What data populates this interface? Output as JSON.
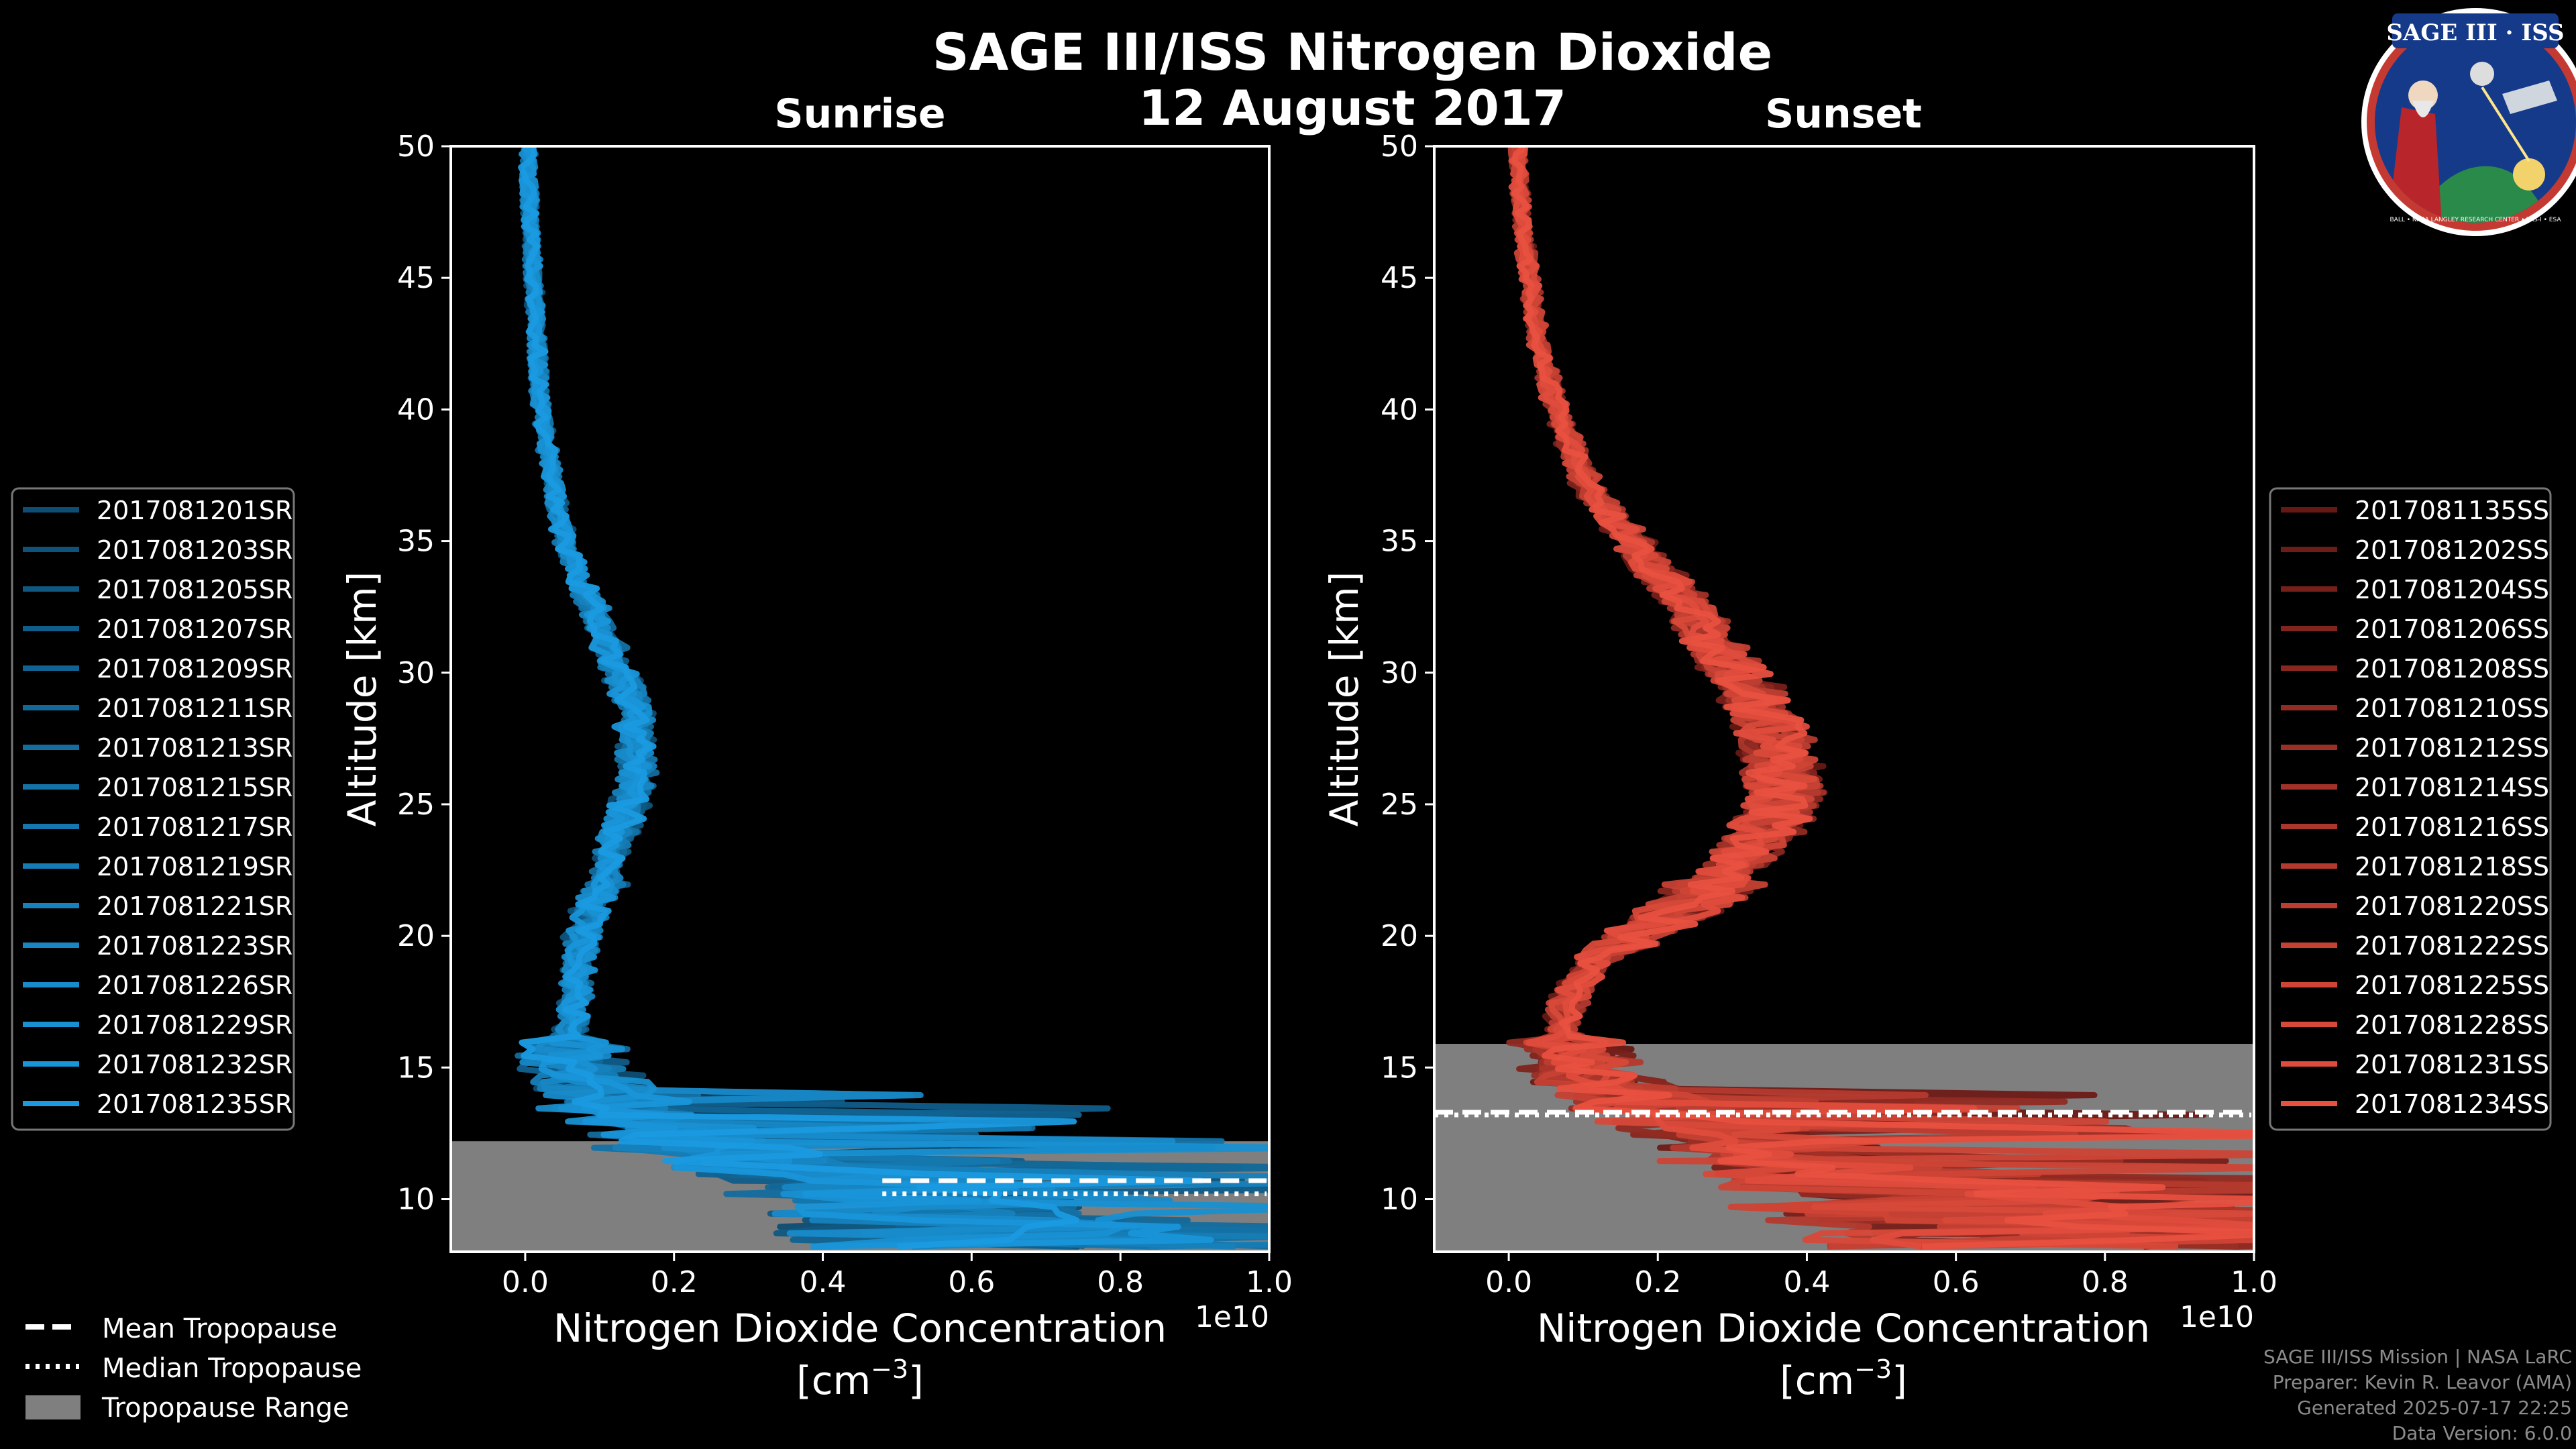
{
  "header": {
    "title": "SAGE III/ISS Nitrogen Dioxide",
    "date": "12 August 2017"
  },
  "logo": {
    "name": "SAGE III · ISS",
    "ring_text": "BALL • NASA LANGLEY RESEARCH CENTER • TAS-I • ESA"
  },
  "legend_common": {
    "items": [
      "Mean Tropopause",
      "Median Tropopause",
      "Tropopause Range"
    ]
  },
  "footer": {
    "line1": "SAGE III/ISS Mission | NASA LaRC",
    "line2": "Preparer: Kevin R. Leavor (AMA)",
    "line3": "Generated 2025-07-17 22:25",
    "line4": "Data Version: 6.0.0"
  },
  "colors": {
    "background": "#000000",
    "sunrise": "#1a9ae0",
    "sunset": "#e8503f",
    "tropopause_range": "#7f7f7f"
  },
  "chart_data": [
    {
      "type": "line",
      "title": "Sunrise",
      "xlabel": "Nitrogen Dioxide Concentration",
      "xlabel_units": "[cm$^{-3}$]",
      "ylabel": "Altitude [km]",
      "x_scale_label": "1e10",
      "xlim": [
        -0.1,
        1.0
      ],
      "ylim": [
        8,
        50
      ],
      "xticks": [
        "0.0",
        "0.2",
        "0.4",
        "0.6",
        "0.8",
        "1.0"
      ],
      "yticks": [
        "10",
        "15",
        "20",
        "25",
        "30",
        "35",
        "40",
        "45",
        "50"
      ],
      "legend_position": "left",
      "tropopause": {
        "mean": 10.7,
        "median": 10.2,
        "range": [
          8.0,
          12.2
        ]
      },
      "altitudes": [
        8.5,
        9.5,
        10.5,
        11.5,
        12.5,
        13.5,
        14.5,
        15.5,
        16.5,
        17.5,
        18.5,
        19.5,
        20.5,
        21.5,
        22.5,
        23.5,
        24.5,
        25.5,
        26.5,
        27.5,
        28.5,
        29.5,
        30.5,
        31.5,
        32.5,
        33.5,
        34.5,
        35.5,
        36.5,
        37.5,
        38.5,
        39.5,
        40.5,
        41.5,
        42.5,
        43.5,
        44.5,
        45.5,
        46.5,
        47.5,
        48.5,
        49.5
      ],
      "mean_profile": [
        0.62,
        0.55,
        0.45,
        0.3,
        0.2,
        0.12,
        0.08,
        0.06,
        0.06,
        0.065,
        0.07,
        0.075,
        0.085,
        0.1,
        0.11,
        0.12,
        0.135,
        0.145,
        0.15,
        0.15,
        0.145,
        0.135,
        0.12,
        0.105,
        0.09,
        0.075,
        0.06,
        0.05,
        0.04,
        0.035,
        0.03,
        0.025,
        0.02,
        0.018,
        0.016,
        0.014,
        0.012,
        0.01,
        0.008,
        0.006,
        0.005,
        0.004
      ],
      "series": [
        {
          "name": "2017081201SR"
        },
        {
          "name": "2017081203SR"
        },
        {
          "name": "2017081205SR"
        },
        {
          "name": "2017081207SR"
        },
        {
          "name": "2017081209SR"
        },
        {
          "name": "2017081211SR"
        },
        {
          "name": "2017081213SR"
        },
        {
          "name": "2017081215SR"
        },
        {
          "name": "2017081217SR"
        },
        {
          "name": "2017081219SR"
        },
        {
          "name": "2017081221SR"
        },
        {
          "name": "2017081223SR"
        },
        {
          "name": "2017081226SR"
        },
        {
          "name": "2017081229SR"
        },
        {
          "name": "2017081232SR"
        },
        {
          "name": "2017081235SR"
        }
      ]
    },
    {
      "type": "line",
      "title": "Sunset",
      "xlabel": "Nitrogen Dioxide Concentration",
      "xlabel_units": "[cm$^{-3}$]",
      "ylabel": "Altitude [km]",
      "x_scale_label": "1e10",
      "xlim": [
        -0.1,
        1.0
      ],
      "ylim": [
        8,
        50
      ],
      "xticks": [
        "0.0",
        "0.2",
        "0.4",
        "0.6",
        "0.8",
        "1.0"
      ],
      "yticks": [
        "10",
        "15",
        "20",
        "25",
        "30",
        "35",
        "40",
        "45",
        "50"
      ],
      "legend_position": "right",
      "tropopause": {
        "mean": 13.3,
        "median": 13.2,
        "range": [
          8.0,
          15.9
        ]
      },
      "altitudes": [
        8.5,
        9.5,
        10.5,
        11.5,
        12.5,
        13.5,
        14.5,
        15.5,
        16.5,
        17.5,
        18.5,
        19.5,
        20.5,
        21.5,
        22.5,
        23.5,
        24.5,
        25.5,
        26.5,
        27.5,
        28.5,
        29.5,
        30.5,
        31.5,
        32.5,
        33.5,
        34.5,
        35.5,
        36.5,
        37.5,
        38.5,
        39.5,
        40.5,
        41.5,
        42.5,
        43.5,
        44.5,
        45.5,
        46.5,
        47.5,
        48.5,
        49.5
      ],
      "mean_profile": [
        0.75,
        0.65,
        0.55,
        0.4,
        0.28,
        0.18,
        0.12,
        0.08,
        0.07,
        0.08,
        0.1,
        0.14,
        0.2,
        0.26,
        0.3,
        0.33,
        0.36,
        0.37,
        0.37,
        0.355,
        0.34,
        0.32,
        0.29,
        0.265,
        0.24,
        0.21,
        0.18,
        0.15,
        0.12,
        0.1,
        0.085,
        0.07,
        0.06,
        0.05,
        0.04,
        0.035,
        0.03,
        0.025,
        0.02,
        0.018,
        0.015,
        0.013
      ],
      "series": [
        {
          "name": "2017081135SS"
        },
        {
          "name": "2017081202SS"
        },
        {
          "name": "2017081204SS"
        },
        {
          "name": "2017081206SS"
        },
        {
          "name": "2017081208SS"
        },
        {
          "name": "2017081210SS"
        },
        {
          "name": "2017081212SS"
        },
        {
          "name": "2017081214SS"
        },
        {
          "name": "2017081216SS"
        },
        {
          "name": "2017081218SS"
        },
        {
          "name": "2017081220SS"
        },
        {
          "name": "2017081222SS"
        },
        {
          "name": "2017081225SS"
        },
        {
          "name": "2017081228SS"
        },
        {
          "name": "2017081231SS"
        },
        {
          "name": "2017081234SS"
        }
      ]
    }
  ]
}
